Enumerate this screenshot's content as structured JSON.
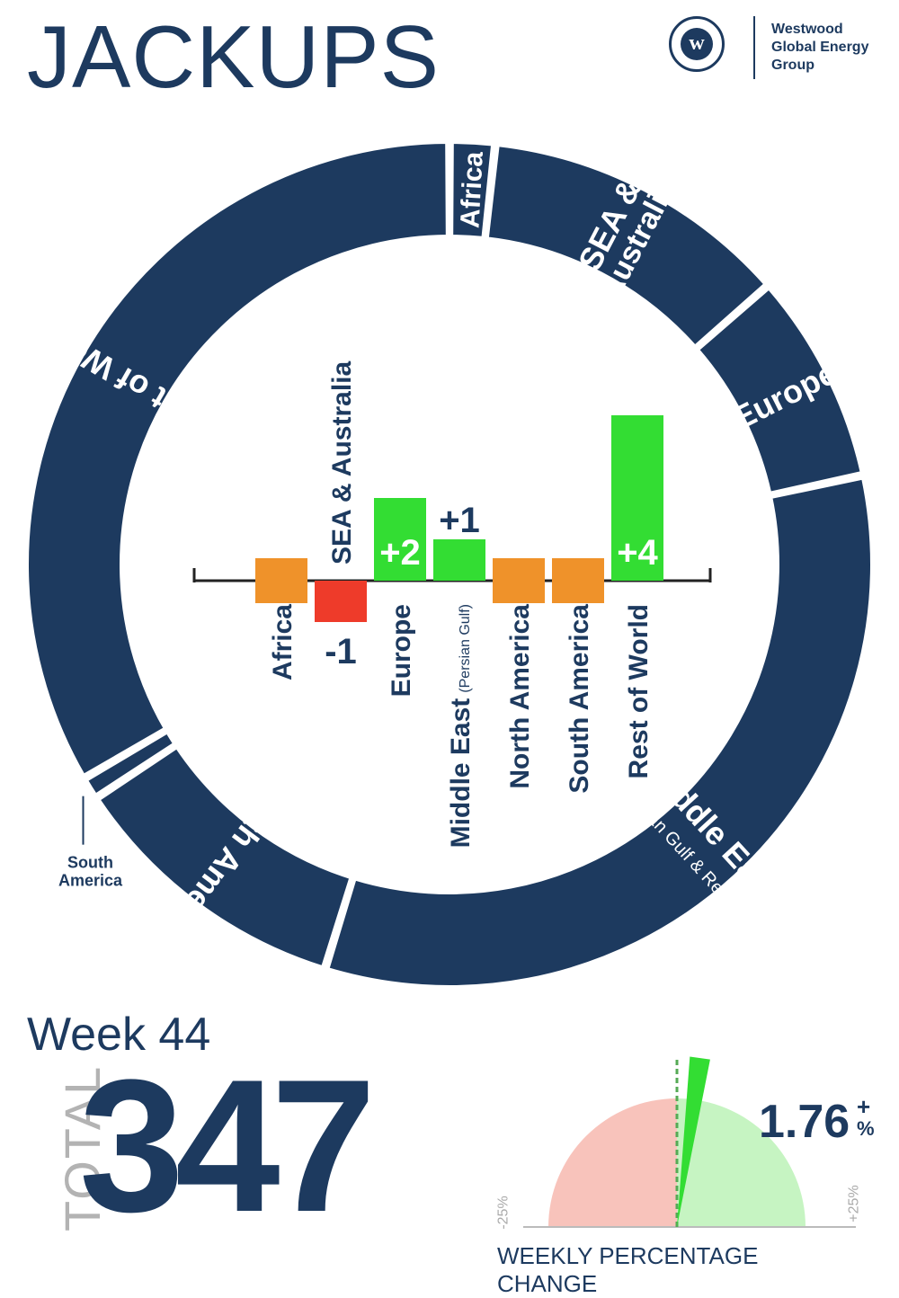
{
  "header": {
    "title": "JACKUPS",
    "logo_letter": "w",
    "logo_lines": [
      "Westwood",
      "Global Energy",
      "Group"
    ]
  },
  "colors": {
    "navy": "#1d3a5f",
    "green": "#33dd33",
    "orange": "#ef922a",
    "red": "#ee3b2a",
    "gauge_negative": "#f8c3bb",
    "gauge_positive": "#c6f4c2",
    "gray": "#b3b3b3"
  },
  "chart_data": [
    {
      "type": "pie",
      "variant": "donut",
      "categories": [
        "Africa",
        "SEA & Australia",
        "Europe",
        "Middle East",
        "North America",
        "South America",
        "Rest of World"
      ],
      "values": [
        6,
        41,
        28,
        115,
        38,
        3,
        116
      ],
      "labels": [
        {
          "text": "Africa",
          "sub": ""
        },
        {
          "text": "SEA &",
          "sub": "Australia"
        },
        {
          "text": "Europe",
          "sub": ""
        },
        {
          "text": "Middle East",
          "sub": "(Persian Gulf & Red Sea)"
        },
        {
          "text": "North America",
          "sub": ""
        },
        {
          "text": "",
          "sub": ""
        },
        {
          "text": "Rest of World",
          "sub": ""
        }
      ],
      "callout": [
        "South",
        "America"
      ]
    },
    {
      "type": "bar",
      "categories": [
        "Africa",
        "SEA & Australia",
        "Europe",
        "Middle East",
        "North America",
        "South America",
        "Rest of World"
      ],
      "category_subs": [
        "",
        "",
        "",
        "(Persian Gulf)",
        "",
        "",
        ""
      ],
      "values": [
        0,
        -1,
        2,
        1,
        0,
        0,
        4
      ],
      "value_labels": [
        "",
        "-1",
        "+2",
        "+1",
        "",
        "",
        "+4"
      ],
      "colors_by_sign": {
        "positive": "#33dd33",
        "zero": "#ef922a",
        "negative": "#ee3b2a"
      },
      "title": "",
      "xlabel": "",
      "ylabel": ""
    },
    {
      "type": "gauge",
      "value": 1.76,
      "range": [
        -25,
        25
      ],
      "min_label": "-25%",
      "max_label": "+25%",
      "title": "WEEKLY PERCENTAGE CHANGE"
    }
  ],
  "summary": {
    "week": "Week 44",
    "total_label": "TOTAL",
    "total_value": "347",
    "change_value": "1.76",
    "change_sign": "+",
    "change_unit": "%"
  }
}
